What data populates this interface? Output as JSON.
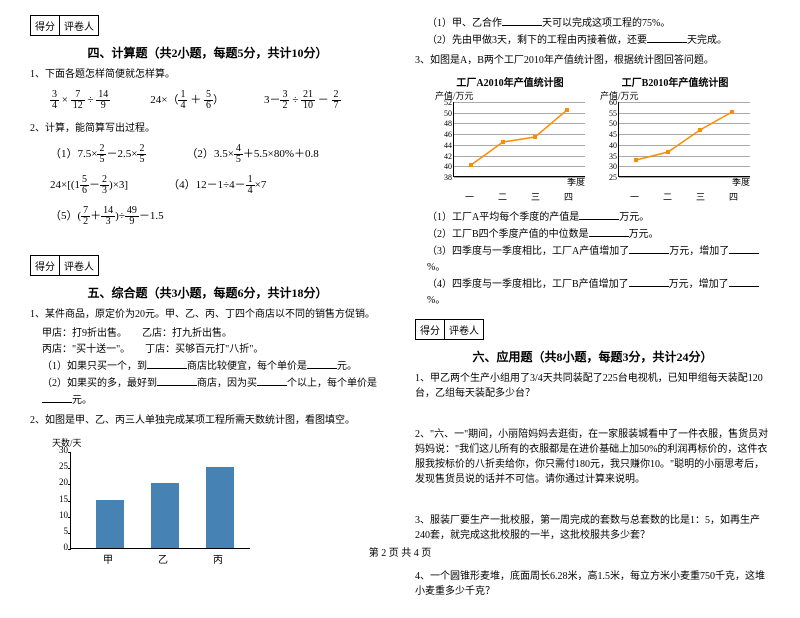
{
  "scoreLabels": {
    "score": "得分",
    "reviewer": "评卷人"
  },
  "section4": {
    "title": "四、计算题（共2小题，每题5分，共计10分）",
    "q1": "1、下面各题怎样简便就怎样算。",
    "q2": "2、计算，能简算写出过程。",
    "formulas1": {
      "a": [
        "3",
        "4",
        "7",
        "12",
        "14",
        "9"
      ],
      "b": [
        "1",
        "4",
        "5",
        "6"
      ],
      "c": [
        "3",
        "2",
        "21",
        "10",
        "2",
        "7"
      ]
    },
    "sub": {
      "item1": "（1）7.5×",
      "item1b": "－2.5×",
      "item2prefix": "（2）",
      "item2": "3.5×",
      "item2b": "＋5.5×80%＋0.8",
      "item3": "24×",
      "item4": "（4）12－1÷4－",
      "item4b": "×7",
      "item5": "（5）"
    }
  },
  "section5": {
    "title": "五、综合题（共3小题，每题6分，共计18分）",
    "q1": "1、某件商品，原定价为20元。甲、乙、丙、丁四个商店以不同的销售方促销。",
    "q1a": "甲店：打9折出售。　　乙店：打九折出售。",
    "q1b": "丙店：\"买十送一\"。　　丁店：买够百元打\"八折\"。",
    "q1c1": "（1）如果只买一个，到",
    "q1c2": "商店比较便宜，每个单价是",
    "q1c3": "元。",
    "q1d1": "（2）如果买的多，最好到",
    "q1d2": "商店，因为买",
    "q1d3": "个以上，每个单价是",
    "q1d4": "元。",
    "q2": "2、如图是甲、乙、丙三人单独完成某项工程所需天数统计图，看图填空。",
    "chartY": "天数/天",
    "yticks": [
      "30",
      "25",
      "20",
      "15",
      "10",
      "5",
      "0"
    ],
    "bars": [
      {
        "label": "甲",
        "value": 15,
        "color": "#4682b4"
      },
      {
        "label": "乙",
        "value": 20,
        "color": "#4682b4"
      },
      {
        "label": "丙",
        "value": 25,
        "color": "#4682b4"
      }
    ],
    "ymax": 30
  },
  "rightTop": {
    "a": "（1）甲、乙合作",
    "a2": "天可以完成这项工程的75%。",
    "b": "（2）先由甲做3天，剩下的工程由丙接着做，还要",
    "b2": "天完成。",
    "q3": "3、如图是A，B两个工厂2010年产值统计图，根据统计图回答问题。"
  },
  "lineCharts": {
    "a": {
      "title": "工厂A2010年产值统计图",
      "ylabel": "产值/万元",
      "yticks": [
        "52",
        "50",
        "48",
        "46",
        "44",
        "42",
        "40",
        "38"
      ],
      "xlabel": "季度",
      "xticks": [
        "一",
        "二",
        "三",
        "四"
      ],
      "points": [
        [
          18,
          63
        ],
        [
          50,
          40
        ],
        [
          82,
          35
        ],
        [
          114,
          8
        ]
      ],
      "color": "#ff8c00"
    },
    "b": {
      "title": "工厂B2010年产值统计图",
      "ylabel": "产值/万元",
      "yticks": [
        "60",
        "55",
        "50",
        "45",
        "40",
        "35",
        "30",
        "25"
      ],
      "xlabel": "季度",
      "xticks": [
        "一",
        "二",
        "三",
        "四"
      ],
      "points": [
        [
          18,
          58
        ],
        [
          50,
          50
        ],
        [
          82,
          28
        ],
        [
          114,
          10
        ]
      ],
      "color": "#ff8c00"
    }
  },
  "chartQ": {
    "a1": "（1）工厂A平均每个季度的产值是",
    "a2": "万元。",
    "b1": "（2）工厂B四个季度产值的中位数是",
    "b2": "万元。",
    "c1": "（3）四季度与一季度相比，工厂A产值增加了",
    "c2": "万元，增加了",
    "c3": "%。",
    "d1": "（4）四季度与一季度相比，工厂B产值增加了",
    "d2": "万元，增加了",
    "d3": "%。"
  },
  "section6": {
    "title": "六、应用题（共8小题，每题3分，共计24分）",
    "q1": "1、甲乙两个生产小组用了3/4天共同装配了225台电视机，已知甲组每天装配120台，乙组每天装配多少台？",
    "q2": "2、\"六、一\"期间，小丽陪妈妈去逛街，在一家服装城看中了一件衣服，售货员对妈妈说：\"我们这儿所有的衣服都是在进价基础上加50%的利润再标价的，这件衣服我按标价的八折卖给你，你只需付180元，我只赚你10。\"聪明的小丽思考后，发现售货员说的话并不可信。请你通过计算来说明。",
    "q3": "3、服装厂要生产一批校服，第一周完成的套数与总套数的比是1：5，如再生产240套，就完成这批校服的一半，这批校服共多少套？",
    "q4": "4、一个圆锥形麦堆，底面周长6.28米，高1.5米，每立方米小麦重750千克，这堆小麦重多少千克？"
  },
  "footer": "第 2 页 共 4 页"
}
